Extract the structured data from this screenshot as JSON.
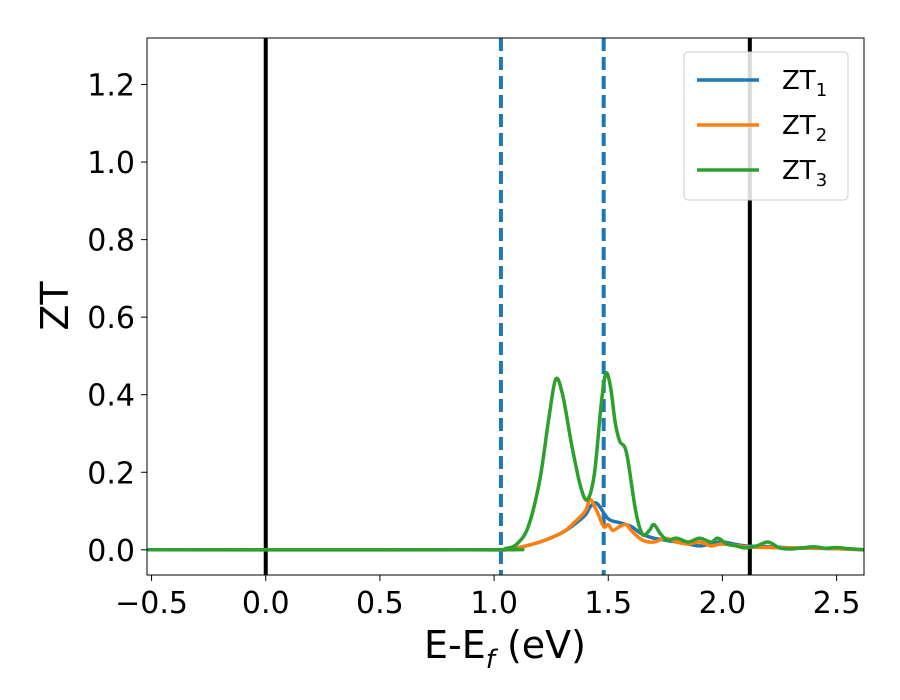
{
  "chart_data": {
    "type": "line",
    "title": "",
    "xlabel": "E-E",
    "xlabel_sub": "f",
    "xlabel_unit": " (eV)",
    "ylabel": "ZT",
    "xlim": [
      -0.52,
      2.62
    ],
    "ylim": [
      -0.065,
      1.32
    ],
    "xticks": [
      -0.5,
      0.0,
      0.5,
      1.0,
      1.5,
      2.0,
      2.5
    ],
    "xtick_labels": [
      "−0.5",
      "0.0",
      "0.5",
      "1.0",
      "1.5",
      "2.0",
      "2.5"
    ],
    "yticks": [
      0.0,
      0.2,
      0.4,
      0.6,
      0.8,
      1.0,
      1.2
    ],
    "ytick_labels": [
      "0.0",
      "0.2",
      "0.4",
      "0.6",
      "0.8",
      "1.0",
      "1.2"
    ],
    "grid": false,
    "legend_position": "top-right",
    "vlines": [
      {
        "x": 0.0,
        "color": "#000000",
        "style": "solid"
      },
      {
        "x": 2.12,
        "color": "#000000",
        "style": "solid"
      },
      {
        "x": 1.03,
        "color": "#1f77b4",
        "style": "dashed"
      },
      {
        "x": 1.48,
        "color": "#1f77b4",
        "style": "dashed"
      }
    ],
    "series": [
      {
        "name": "ZT",
        "name_sub": "1",
        "color": "#1f77b4",
        "x": [
          -0.52,
          0.9,
          1.03,
          1.1,
          1.2,
          1.3,
          1.35,
          1.4,
          1.42,
          1.45,
          1.5,
          1.55,
          1.6,
          1.65,
          1.7,
          1.75,
          1.8,
          1.85,
          1.9,
          1.95,
          2.0,
          2.1,
          2.2,
          2.3,
          2.4,
          2.5,
          2.62
        ],
        "y": [
          0.0,
          0.0,
          0.0,
          0.005,
          0.02,
          0.045,
          0.065,
          0.09,
          0.11,
          0.12,
          0.08,
          0.07,
          0.06,
          0.04,
          0.03,
          0.025,
          0.02,
          0.015,
          0.01,
          0.015,
          0.02,
          0.01,
          0.008,
          0.005,
          0.004,
          0.003,
          0.0
        ]
      },
      {
        "name": "ZT",
        "name_sub": "2",
        "color": "#ff7f0e",
        "x": [
          -0.52,
          0.9,
          1.03,
          1.1,
          1.2,
          1.3,
          1.35,
          1.4,
          1.42,
          1.45,
          1.48,
          1.5,
          1.52,
          1.55,
          1.58,
          1.6,
          1.65,
          1.7,
          1.75,
          1.8,
          1.85,
          1.9,
          1.95,
          2.0,
          2.1,
          2.2,
          2.3,
          2.4,
          2.5,
          2.62
        ],
        "y": [
          0.0,
          0.0,
          0.0,
          0.005,
          0.02,
          0.045,
          0.07,
          0.1,
          0.13,
          0.1,
          0.06,
          0.065,
          0.05,
          0.06,
          0.065,
          0.05,
          0.025,
          0.02,
          0.03,
          0.02,
          0.015,
          0.02,
          0.01,
          0.015,
          0.008,
          0.006,
          0.005,
          0.004,
          0.003,
          0.0
        ]
      },
      {
        "name": "ZT",
        "name_sub": "3",
        "color": "#2ca02c",
        "x": [
          -0.52,
          1.0,
          1.05,
          1.1,
          1.15,
          1.2,
          1.24,
          1.27,
          1.3,
          1.34,
          1.38,
          1.41,
          1.44,
          1.47,
          1.49,
          1.51,
          1.53,
          1.55,
          1.58,
          1.62,
          1.65,
          1.68,
          1.7,
          1.73,
          1.76,
          1.8,
          1.85,
          1.9,
          1.95,
          1.98,
          2.02,
          2.06,
          2.1,
          2.15,
          2.2,
          2.25,
          2.3,
          2.35,
          2.4,
          2.45,
          2.5,
          2.55,
          2.62
        ],
        "y": [
          0.0,
          0.0,
          0.003,
          0.015,
          0.06,
          0.18,
          0.34,
          0.44,
          0.4,
          0.27,
          0.16,
          0.13,
          0.2,
          0.38,
          0.455,
          0.42,
          0.33,
          0.28,
          0.25,
          0.1,
          0.04,
          0.05,
          0.065,
          0.04,
          0.025,
          0.03,
          0.02,
          0.03,
          0.02,
          0.03,
          0.015,
          0.01,
          0.005,
          0.01,
          0.02,
          0.005,
          0.002,
          0.005,
          0.008,
          0.004,
          0.006,
          0.003,
          0.0
        ]
      }
    ]
  }
}
